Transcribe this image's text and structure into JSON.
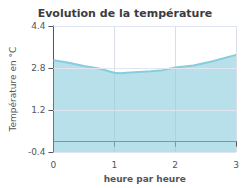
{
  "chart_data": {
    "type": "area",
    "title": "Evolution de la température",
    "xlabel": "heure par heure",
    "ylabel": "Température en °C",
    "x": [
      0,
      0.25,
      0.5,
      0.75,
      1.0,
      1.1,
      1.2,
      1.4,
      1.6,
      1.8,
      2.0,
      2.3,
      2.6,
      3.0
    ],
    "values": [
      3.1,
      3.0,
      2.88,
      2.78,
      2.62,
      2.6,
      2.62,
      2.65,
      2.68,
      2.72,
      2.82,
      2.9,
      3.05,
      3.3
    ],
    "color": "#88ccdd",
    "xlim": [
      0,
      3
    ],
    "ylim": [
      -0.4,
      4.4
    ],
    "xticks": [
      0,
      1,
      2,
      3
    ],
    "yticks": [
      -0.4,
      1.2,
      2.8,
      4.4
    ],
    "grid": true
  }
}
